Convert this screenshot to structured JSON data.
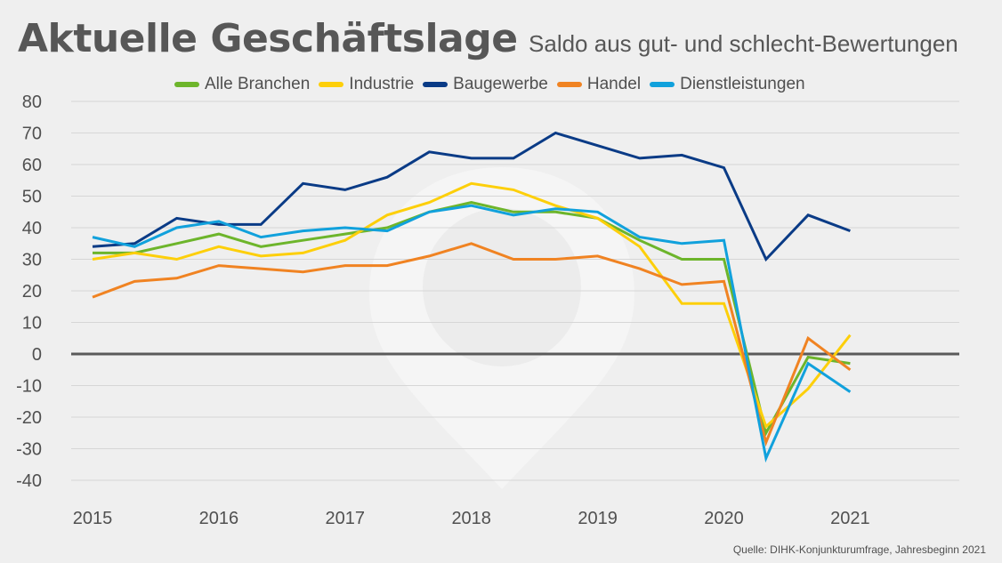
{
  "chart_data": {
    "type": "line",
    "title": "Aktuelle Geschäftslage",
    "subtitle": "Saldo aus gut- und schlecht-Bewertungen",
    "xlabel": "",
    "ylabel": "",
    "ylim": [
      -40,
      80
    ],
    "yticks": [
      80,
      70,
      60,
      50,
      40,
      30,
      20,
      10,
      0,
      -10,
      -20,
      -30,
      -40
    ],
    "ytick_labels": [
      "80",
      "70",
      "60",
      "50",
      "40",
      "30",
      "20",
      "10",
      "0",
      "-10",
      "-20",
      "-30",
      "-40"
    ],
    "x_count": 19,
    "xtick_labels": [
      {
        "label": "2015",
        "index": 0
      },
      {
        "label": "2016",
        "index": 3
      },
      {
        "label": "2017",
        "index": 6
      },
      {
        "label": "2018",
        "index": 9
      },
      {
        "label": "2019",
        "index": 12
      },
      {
        "label": "2020",
        "index": 15
      },
      {
        "label": "2021",
        "index": 18
      }
    ],
    "grid": true,
    "legend_position": "top-center",
    "series": [
      {
        "name": "Alle Branchen",
        "color": "#6db52b",
        "values": [
          32,
          32,
          35,
          38,
          34,
          36,
          38,
          40,
          45,
          48,
          45,
          45,
          43,
          36,
          30,
          30,
          -25,
          -1,
          -3
        ]
      },
      {
        "name": "Industrie",
        "color": "#fdcf0a",
        "values": [
          30,
          32,
          30,
          34,
          31,
          32,
          36,
          44,
          48,
          54,
          52,
          47,
          43,
          34,
          16,
          16,
          -23,
          -11,
          6
        ]
      },
      {
        "name": "Baugewerbe",
        "color": "#0a3b86",
        "values": [
          34,
          35,
          43,
          41,
          41,
          54,
          52,
          56,
          64,
          62,
          62,
          70,
          66,
          62,
          63,
          59,
          30,
          44,
          39
        ]
      },
      {
        "name": "Handel",
        "color": "#f08322",
        "values": [
          18,
          23,
          24,
          28,
          27,
          26,
          28,
          28,
          31,
          35,
          30,
          30,
          31,
          27,
          22,
          23,
          -28,
          5,
          -5
        ]
      },
      {
        "name": "Dienstleistungen",
        "color": "#11a1dc",
        "values": [
          37,
          34,
          40,
          42,
          37,
          39,
          40,
          39,
          45,
          47,
          44,
          46,
          45,
          37,
          35,
          36,
          -33,
          -3,
          -12
        ]
      }
    ],
    "source": "Quelle: DIHK-Konjunkturumfrage, Jahresbeginn 2021"
  }
}
